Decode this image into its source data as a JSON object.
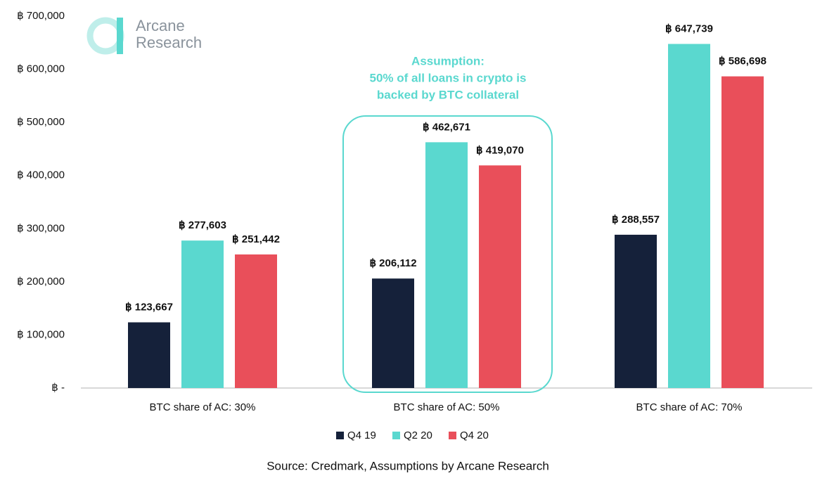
{
  "chart_data": {
    "type": "bar",
    "logo": [
      "Arcane",
      "Research"
    ],
    "categories": [
      "BTC share of AC: 30%",
      "BTC share of AC: 50%",
      "BTC share of AC: 70%"
    ],
    "series": [
      {
        "name": "Q4 19",
        "color": "#15213a",
        "values": [
          123667,
          206112,
          288557
        ],
        "value_labels": [
          "฿ 123,667",
          "฿ 206,112",
          "฿ 288,557"
        ]
      },
      {
        "name": "Q2 20",
        "color": "#5ad8cf",
        "values": [
          277603,
          462671,
          647739
        ],
        "value_labels": [
          "฿ 277,603",
          "฿ 462,671",
          "฿ 647,739"
        ]
      },
      {
        "name": "Q4 20",
        "color": "#e94f5a",
        "values": [
          251442,
          419070,
          586698
        ],
        "value_labels": [
          "฿ 251,442",
          "฿ 419,070",
          "฿ 586,698"
        ]
      }
    ],
    "ylim": [
      0,
      700000
    ],
    "yticks": [
      {
        "value": 0,
        "label": "฿ -"
      },
      {
        "value": 100000,
        "label": "฿ 100,000"
      },
      {
        "value": 200000,
        "label": "฿ 200,000"
      },
      {
        "value": 300000,
        "label": "฿ 300,000"
      },
      {
        "value": 400000,
        "label": "฿ 400,000"
      },
      {
        "value": 500000,
        "label": "฿ 500,000"
      },
      {
        "value": 600000,
        "label": "฿ 600,000"
      },
      {
        "value": 700000,
        "label": "฿ 700,000"
      }
    ],
    "annotation": [
      "Assumption:",
      "50% of all loans in crypto is",
      "backed by BTC collateral"
    ],
    "annotation_color": "#5ad8cf",
    "source": "Source: Credmark, Assumptions by Arcane Research"
  }
}
